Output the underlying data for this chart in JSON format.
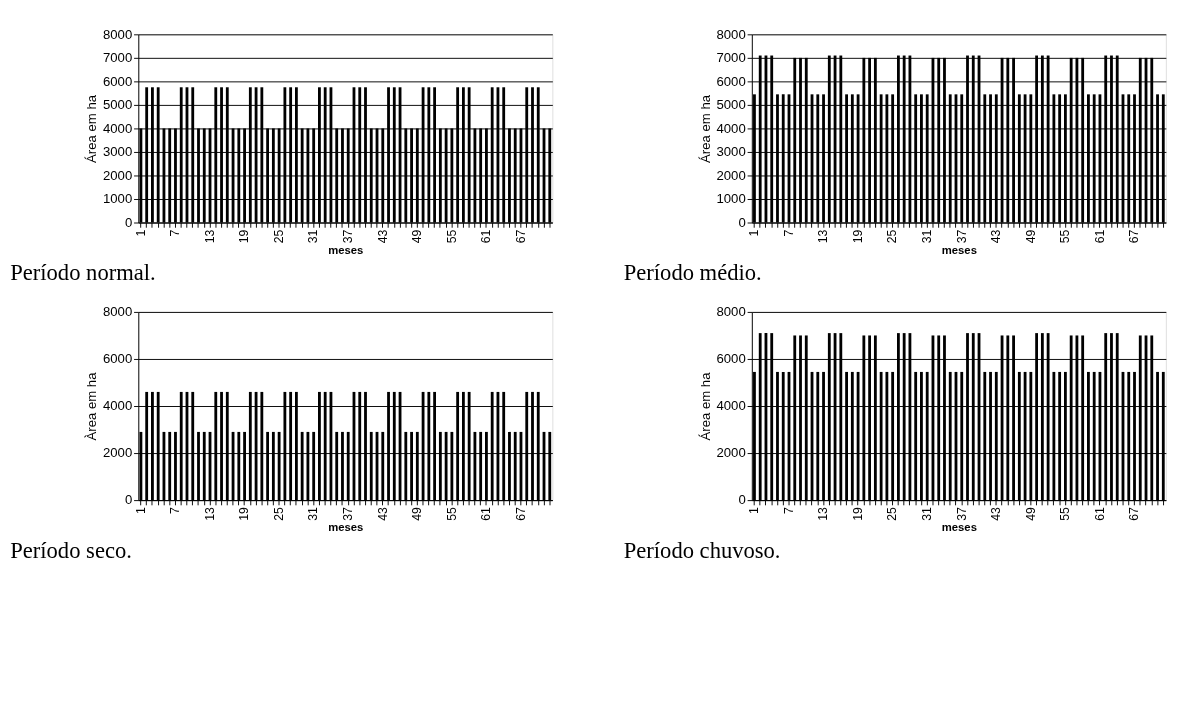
{
  "chart_data": [
    {
      "type": "bar",
      "title": "Período normal.",
      "xlabel": "meses",
      "ylabel": "Área em ha",
      "color": "#000000",
      "grid": "y",
      "ylim": [
        0,
        8000
      ],
      "yticks": [
        0,
        1000,
        2000,
        3000,
        4000,
        5000,
        6000,
        7000,
        8000
      ],
      "categories": [
        "1",
        null,
        null,
        null,
        null,
        null,
        "7",
        null,
        null,
        null,
        null,
        null,
        "13",
        null,
        null,
        null,
        null,
        null,
        "19",
        null,
        null,
        null,
        null,
        null,
        "25",
        null,
        null,
        null,
        null,
        null,
        "31",
        null,
        null,
        null,
        null,
        null,
        "37",
        null,
        null,
        null,
        null,
        null,
        "43",
        null,
        null,
        null,
        null,
        null,
        "49",
        null,
        null,
        null,
        null,
        null,
        "55",
        null,
        null,
        null,
        null,
        null,
        "61",
        null,
        null,
        null,
        null,
        null,
        "67",
        null,
        null,
        null,
        null,
        null
      ],
      "values": [
        4000,
        5750,
        5750,
        5750,
        4000,
        4000,
        4000,
        5750,
        5750,
        5750,
        4000,
        4000,
        4000,
        5750,
        5750,
        5750,
        4000,
        4000,
        4000,
        5750,
        5750,
        5750,
        4000,
        4000,
        4000,
        5750,
        5750,
        5750,
        4000,
        4000,
        4000,
        5750,
        5750,
        5750,
        4000,
        4000,
        4000,
        5750,
        5750,
        5750,
        4000,
        4000,
        4000,
        5750,
        5750,
        5750,
        4000,
        4000,
        4000,
        5750,
        5750,
        5750,
        4000,
        4000,
        4000,
        5750,
        5750,
        5750,
        4000,
        4000,
        4000,
        5750,
        5750,
        5750,
        4000,
        4000,
        4000,
        5750,
        5750,
        5750,
        4000,
        4000
      ]
    },
    {
      "type": "bar",
      "title": "Período médio.",
      "xlabel": "meses",
      "ylabel": "Área em ha",
      "color": "#000000",
      "grid": "y",
      "ylim": [
        0,
        8000
      ],
      "yticks": [
        0,
        1000,
        2000,
        3000,
        4000,
        5000,
        6000,
        7000,
        8000
      ],
      "categories": [
        "1",
        null,
        null,
        null,
        null,
        null,
        "7",
        null,
        null,
        null,
        null,
        null,
        "13",
        null,
        null,
        null,
        null,
        null,
        "19",
        null,
        null,
        null,
        null,
        null,
        "25",
        null,
        null,
        null,
        null,
        null,
        "31",
        null,
        null,
        null,
        null,
        null,
        "37",
        null,
        null,
        null,
        null,
        null,
        "43",
        null,
        null,
        null,
        null,
        null,
        "49",
        null,
        null,
        null,
        null,
        null,
        "55",
        null,
        null,
        null,
        null,
        null,
        "61",
        null,
        null,
        null,
        null,
        null,
        "67",
        null,
        null,
        null,
        null,
        null
      ],
      "values": [
        5450,
        7100,
        7100,
        7100,
        5450,
        5450,
        5450,
        7000,
        7000,
        7000,
        5450,
        5450,
        5450,
        7100,
        7100,
        7100,
        5450,
        5450,
        5450,
        7000,
        7000,
        7000,
        5450,
        5450,
        5450,
        7100,
        7100,
        7100,
        5450,
        5450,
        5450,
        7000,
        7000,
        7000,
        5450,
        5450,
        5450,
        7100,
        7100,
        7100,
        5450,
        5450,
        5450,
        7000,
        7000,
        7000,
        5450,
        5450,
        5450,
        7100,
        7100,
        7100,
        5450,
        5450,
        5450,
        7000,
        7000,
        7000,
        5450,
        5450,
        5450,
        7100,
        7100,
        7100,
        5450,
        5450,
        5450,
        7000,
        7000,
        7000,
        5450,
        5450
      ]
    },
    {
      "type": "bar",
      "title": "Período seco.",
      "xlabel": "meses",
      "ylabel": "Àrea em ha",
      "color": "#000000",
      "grid": "y",
      "ylim": [
        0,
        8000
      ],
      "yticks": [
        0,
        2000,
        4000,
        6000,
        8000
      ],
      "categories": [
        "1",
        null,
        null,
        null,
        null,
        null,
        "7",
        null,
        null,
        null,
        null,
        null,
        "13",
        null,
        null,
        null,
        null,
        null,
        "19",
        null,
        null,
        null,
        null,
        null,
        "25",
        null,
        null,
        null,
        null,
        null,
        "31",
        null,
        null,
        null,
        null,
        null,
        "37",
        null,
        null,
        null,
        null,
        null,
        "43",
        null,
        null,
        null,
        null,
        null,
        "49",
        null,
        null,
        null,
        null,
        null,
        "55",
        null,
        null,
        null,
        null,
        null,
        "61",
        null,
        null,
        null,
        null,
        null,
        "67",
        null,
        null,
        null,
        null,
        null
      ],
      "values": [
        2900,
        4600,
        4600,
        4600,
        2900,
        2900,
        2900,
        4600,
        4600,
        4600,
        2900,
        2900,
        2900,
        4600,
        4600,
        4600,
        2900,
        2900,
        2900,
        4600,
        4600,
        4600,
        2900,
        2900,
        2900,
        4600,
        4600,
        4600,
        2900,
        2900,
        2900,
        4600,
        4600,
        4600,
        2900,
        2900,
        2900,
        4600,
        4600,
        4600,
        2900,
        2900,
        2900,
        4600,
        4600,
        4600,
        2900,
        2900,
        2900,
        4600,
        4600,
        4600,
        2900,
        2900,
        2900,
        4600,
        4600,
        4600,
        2900,
        2900,
        2900,
        4600,
        4600,
        4600,
        2900,
        2900,
        2900,
        4600,
        4600,
        4600,
        2900,
        2900
      ]
    },
    {
      "type": "bar",
      "title": "Período chuvoso.",
      "xlabel": "meses",
      "ylabel": "Área em ha",
      "color": "#000000",
      "grid": "y",
      "ylim": [
        0,
        8000
      ],
      "yticks": [
        0,
        2000,
        4000,
        6000,
        8000
      ],
      "categories": [
        "1",
        null,
        null,
        null,
        null,
        null,
        "7",
        null,
        null,
        null,
        null,
        null,
        "13",
        null,
        null,
        null,
        null,
        null,
        "19",
        null,
        null,
        null,
        null,
        null,
        "25",
        null,
        null,
        null,
        null,
        null,
        "31",
        null,
        null,
        null,
        null,
        null,
        "37",
        null,
        null,
        null,
        null,
        null,
        "43",
        null,
        null,
        null,
        null,
        null,
        "49",
        null,
        null,
        null,
        null,
        null,
        "55",
        null,
        null,
        null,
        null,
        null,
        "61",
        null,
        null,
        null,
        null,
        null,
        "67",
        null,
        null,
        null,
        null,
        null
      ],
      "values": [
        5450,
        7100,
        7100,
        7100,
        5450,
        5450,
        5450,
        7000,
        7000,
        7000,
        5450,
        5450,
        5450,
        7100,
        7100,
        7100,
        5450,
        5450,
        5450,
        7000,
        7000,
        7000,
        5450,
        5450,
        5450,
        7100,
        7100,
        7100,
        5450,
        5450,
        5450,
        7000,
        7000,
        7000,
        5450,
        5450,
        5450,
        7100,
        7100,
        7100,
        5450,
        5450,
        5450,
        7000,
        7000,
        7000,
        5450,
        5450,
        5450,
        7100,
        7100,
        7100,
        5450,
        5450,
        5450,
        7000,
        7000,
        7000,
        5450,
        5450,
        5450,
        7100,
        7100,
        7100,
        5450,
        5450,
        5450,
        7000,
        7000,
        7000,
        5450,
        5450
      ]
    }
  ]
}
